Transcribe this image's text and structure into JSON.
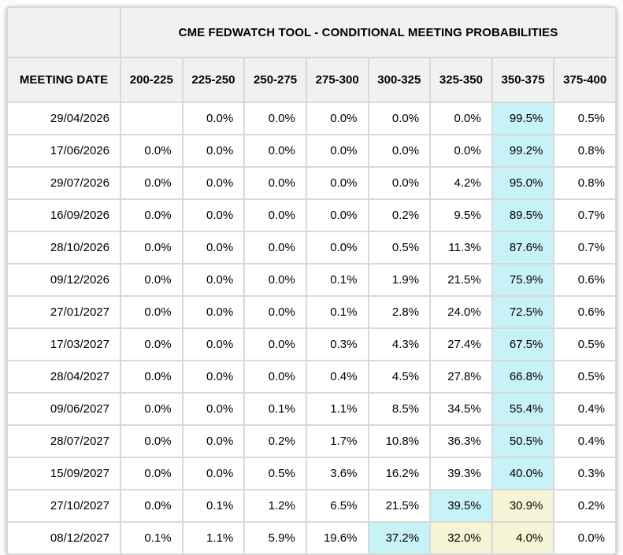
{
  "table": {
    "date_header": "MEETING DATE",
    "highlights": [
      {
        "cyan": [
          6
        ],
        "yellow": []
      },
      {
        "cyan": [
          6
        ],
        "yellow": []
      },
      {
        "cyan": [
          6
        ],
        "yellow": []
      },
      {
        "cyan": [
          6
        ],
        "yellow": []
      },
      {
        "cyan": [
          6
        ],
        "yellow": []
      },
      {
        "cyan": [
          6
        ],
        "yellow": []
      },
      {
        "cyan": [
          6
        ],
        "yellow": []
      },
      {
        "cyan": [
          6
        ],
        "yellow": []
      },
      {
        "cyan": [
          6
        ],
        "yellow": []
      },
      {
        "cyan": [
          6
        ],
        "yellow": []
      },
      {
        "cyan": [
          6
        ],
        "yellow": []
      },
      {
        "cyan": [
          6
        ],
        "yellow": []
      },
      {
        "cyan": [
          5
        ],
        "yellow": [
          6
        ]
      },
      {
        "cyan": [
          4
        ],
        "yellow": [
          5,
          6
        ]
      }
    ]
  },
  "chart_data": {
    "type": "table",
    "title": "CME FEDWATCH TOOL - CONDITIONAL MEETING PROBABILITIES",
    "unit": "%",
    "columns": [
      "MEETING DATE",
      "200-225",
      "225-250",
      "250-275",
      "275-300",
      "300-325",
      "325-350",
      "350-375",
      "375-400"
    ],
    "rows": [
      [
        "29/04/2026",
        null,
        0.0,
        0.0,
        0.0,
        0.0,
        0.0,
        99.5,
        0.5
      ],
      [
        "17/06/2026",
        0.0,
        0.0,
        0.0,
        0.0,
        0.0,
        0.0,
        99.2,
        0.8
      ],
      [
        "29/07/2026",
        0.0,
        0.0,
        0.0,
        0.0,
        0.0,
        4.2,
        95.0,
        0.8
      ],
      [
        "16/09/2026",
        0.0,
        0.0,
        0.0,
        0.0,
        0.2,
        9.5,
        89.5,
        0.7
      ],
      [
        "28/10/2026",
        0.0,
        0.0,
        0.0,
        0.0,
        0.5,
        11.3,
        87.6,
        0.7
      ],
      [
        "09/12/2026",
        0.0,
        0.0,
        0.0,
        0.1,
        1.9,
        21.5,
        75.9,
        0.6
      ],
      [
        "27/01/2027",
        0.0,
        0.0,
        0.0,
        0.1,
        2.8,
        24.0,
        72.5,
        0.6
      ],
      [
        "17/03/2027",
        0.0,
        0.0,
        0.0,
        0.3,
        4.3,
        27.4,
        67.5,
        0.5
      ],
      [
        "28/04/2027",
        0.0,
        0.0,
        0.0,
        0.4,
        4.5,
        27.8,
        66.8,
        0.5
      ],
      [
        "09/06/2027",
        0.0,
        0.0,
        0.1,
        1.1,
        8.5,
        34.5,
        55.4,
        0.4
      ],
      [
        "28/07/2027",
        0.0,
        0.0,
        0.2,
        1.7,
        10.8,
        36.3,
        50.5,
        0.4
      ],
      [
        "15/09/2027",
        0.0,
        0.0,
        0.5,
        3.6,
        16.2,
        39.3,
        40.0,
        0.3
      ],
      [
        "27/10/2027",
        0.0,
        0.1,
        1.2,
        6.5,
        21.5,
        39.5,
        30.9,
        0.2
      ],
      [
        "08/12/2027",
        0.1,
        1.1,
        5.9,
        19.6,
        37.2,
        32.0,
        4.0,
        0.0
      ]
    ]
  },
  "colors": {
    "cyan_highlight": "#c7f2f7",
    "yellow_highlight": "#f5f5d6",
    "header_bg": "#f1f1f1",
    "gridline": "#d9d9d9",
    "cell_bg": "#ffffff",
    "text": "#000000"
  }
}
